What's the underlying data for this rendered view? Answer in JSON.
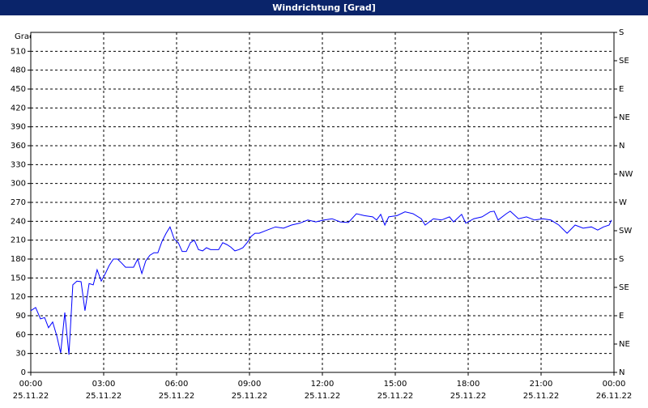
{
  "chart_data": {
    "type": "line",
    "title": "Windrichtung [Grad]",
    "y_label": "Grad",
    "color": "#0000ff",
    "grid": true,
    "xlim": [
      0,
      24
    ],
    "xticks": [
      {
        "value": 0,
        "label": "00:00"
      },
      {
        "value": 3,
        "label": "03:00"
      },
      {
        "value": 6,
        "label": "06:00"
      },
      {
        "value": 9,
        "label": "09:00"
      },
      {
        "value": 12,
        "label": "12:00"
      },
      {
        "value": 15,
        "label": "15:00"
      },
      {
        "value": 18,
        "label": "18:00"
      },
      {
        "value": 21,
        "label": "21:00"
      },
      {
        "value": 24,
        "label": "00:00"
      }
    ],
    "xtick_dates": [
      "25.11.22",
      "25.11.22",
      "25.11.22",
      "25.11.22",
      "25.11.22",
      "25.11.22",
      "25.11.22",
      "25.11.22",
      "26.11.22"
    ],
    "ylim": [
      0,
      540
    ],
    "yticks": [
      0,
      30,
      60,
      90,
      120,
      150,
      180,
      210,
      240,
      270,
      300,
      330,
      360,
      390,
      420,
      450,
      480,
      510
    ],
    "y2lim": [
      0,
      540
    ],
    "y2ticks": [
      {
        "value": 0,
        "label": "N"
      },
      {
        "value": 45,
        "label": "NE"
      },
      {
        "value": 90,
        "label": "E"
      },
      {
        "value": 135,
        "label": "SE"
      },
      {
        "value": 180,
        "label": "S"
      },
      {
        "value": 225,
        "label": "SW"
      },
      {
        "value": 270,
        "label": "W"
      },
      {
        "value": 315,
        "label": "NW"
      },
      {
        "value": 360,
        "label": "N"
      },
      {
        "value": 405,
        "label": "NE"
      },
      {
        "value": 450,
        "label": "E"
      },
      {
        "value": 495,
        "label": "SE"
      },
      {
        "value": 540,
        "label": "S"
      }
    ],
    "x": [
      0,
      0.2,
      0.4,
      0.57,
      0.73,
      0.9,
      1.07,
      1.23,
      1.4,
      1.57,
      1.73,
      1.9,
      2.07,
      2.23,
      2.4,
      2.57,
      2.73,
      2.9,
      3.07,
      3.23,
      3.4,
      3.57,
      3.73,
      3.9,
      4.07,
      4.23,
      4.4,
      4.57,
      4.73,
      4.9,
      5.07,
      5.23,
      5.4,
      5.57,
      5.73,
      5.9,
      6.07,
      6.23,
      6.4,
      6.57,
      6.73,
      6.9,
      7.07,
      7.23,
      7.4,
      7.57,
      7.73,
      7.9,
      8.07,
      8.23,
      8.4,
      8.57,
      8.73,
      8.9,
      9.07,
      9.23,
      9.4,
      9.73,
      10.07,
      10.4,
      10.73,
      11.07,
      11.4,
      11.73,
      12.07,
      12.4,
      12.73,
      13.07,
      13.4,
      13.73,
      14.07,
      14.23,
      14.4,
      14.57,
      14.73,
      15.07,
      15.4,
      15.73,
      16.07,
      16.23,
      16.57,
      16.9,
      17.23,
      17.4,
      17.73,
      17.9,
      18.23,
      18.57,
      18.9,
      19.07,
      19.23,
      19.57,
      19.73,
      20.07,
      20.4,
      20.73,
      21.07,
      21.4,
      21.73,
      22.07,
      22.4,
      22.73,
      23.07,
      23.33,
      23.57,
      23.8,
      23.9
    ],
    "values": [
      98,
      103,
      85,
      87,
      71,
      80,
      58,
      31,
      95,
      28,
      139,
      145,
      144,
      98,
      141,
      139,
      163,
      145,
      157,
      170,
      180,
      180,
      174,
      167,
      167,
      167,
      180,
      157,
      177,
      186,
      190,
      190,
      208,
      221,
      231,
      212,
      206,
      192,
      192,
      206,
      210,
      195,
      193,
      198,
      195,
      195,
      195,
      206,
      203,
      199,
      193,
      195,
      198,
      206,
      216,
      221,
      221,
      226,
      231,
      229,
      234,
      237,
      242,
      239,
      242,
      244,
      239,
      238,
      252,
      249,
      247,
      242,
      251,
      234,
      247,
      249,
      255,
      252,
      244,
      234,
      244,
      242,
      247,
      239,
      251,
      237,
      244,
      247,
      255,
      256,
      242,
      252,
      256,
      244,
      247,
      242,
      244,
      242,
      234,
      221,
      234,
      229,
      231,
      226,
      231,
      234,
      242
    ]
  }
}
